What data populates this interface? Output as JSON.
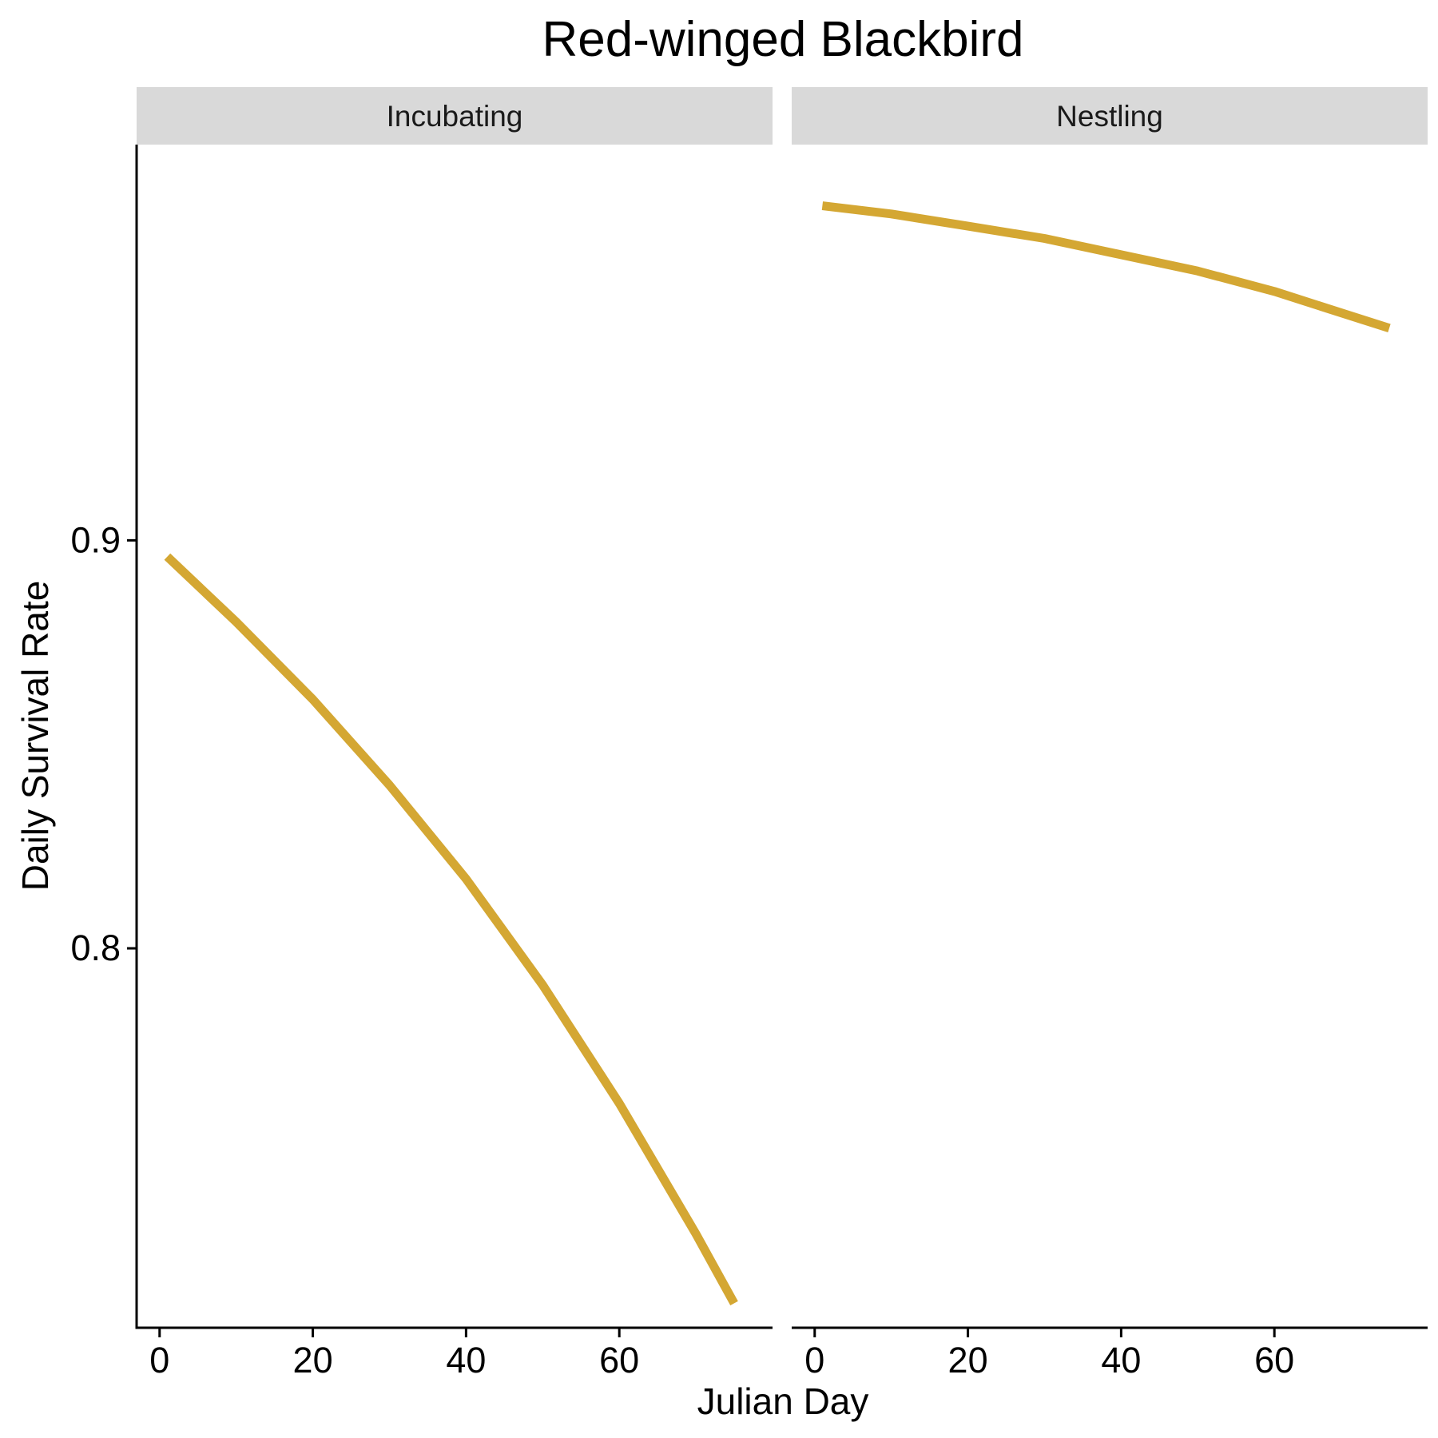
{
  "chart_data": {
    "type": "line",
    "title": "Red-winged Blackbird",
    "xlabel": "Julian Day",
    "ylabel": "Daily Survival Rate",
    "xlim": [
      -3,
      80
    ],
    "ylim": [
      0.707,
      0.997
    ],
    "x_ticks": [
      0,
      20,
      40,
      60
    ],
    "x_tick_labels": [
      "0",
      "20",
      "40",
      "60"
    ],
    "y_ticks": [
      0.8,
      0.9
    ],
    "y_tick_labels": [
      "0.8",
      "0.9"
    ],
    "grid": false,
    "line_color": "#D4A733",
    "strip_color": "#D9D9D9",
    "panels": [
      {
        "label": "Incubating",
        "series": [
          {
            "x": [
              1,
              10,
              20,
              30,
              40,
              50,
              60,
              70,
              75
            ],
            "y": [
              0.896,
              0.88,
              0.861,
              0.84,
              0.817,
              0.791,
              0.762,
              0.73,
              0.713
            ]
          }
        ]
      },
      {
        "label": "Nestling",
        "series": [
          {
            "x": [
              1,
              10,
              20,
              30,
              40,
              50,
              60,
              70,
              75
            ],
            "y": [
              0.982,
              0.98,
              0.977,
              0.974,
              0.97,
              0.966,
              0.961,
              0.955,
              0.952
            ]
          }
        ]
      }
    ]
  }
}
